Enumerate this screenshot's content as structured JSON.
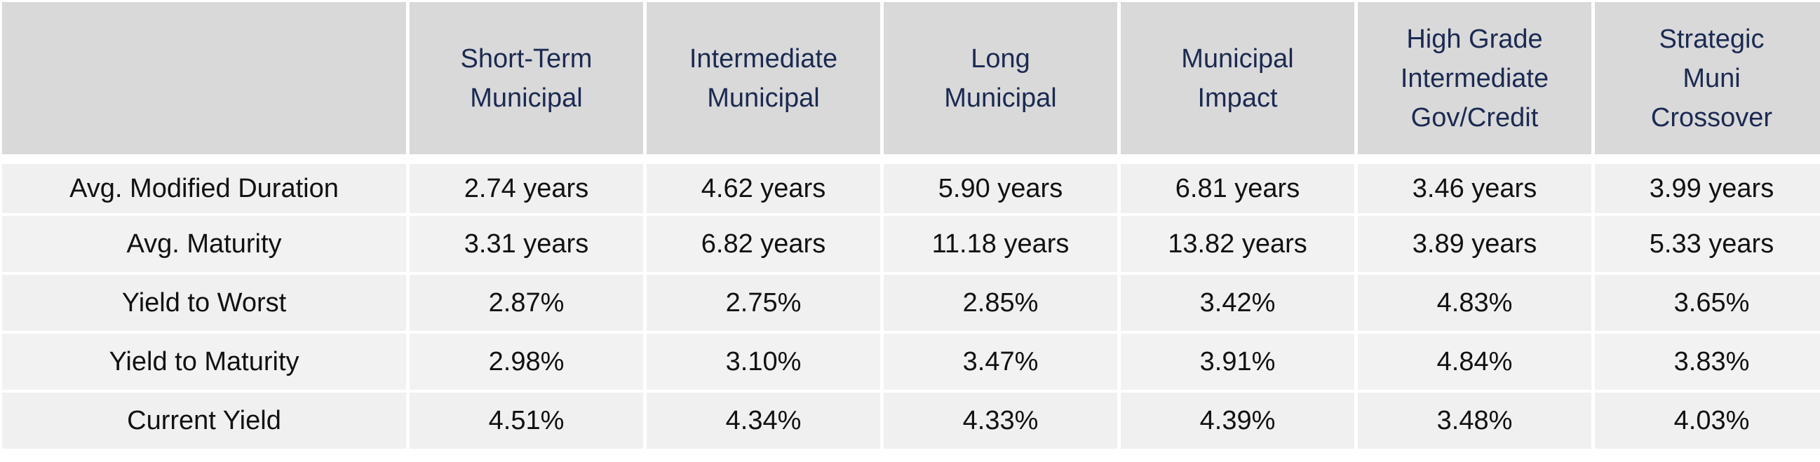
{
  "table": {
    "headers": [
      "",
      "Short-Term\nMunicipal",
      "Intermediate\nMunicipal",
      "Long\nMunicipal",
      "Municipal\nImpact",
      "High Grade\nIntermediate\nGov/Credit",
      "Strategic\nMuni\nCrossover"
    ],
    "rows": [
      {
        "label": "Avg. Modified Duration",
        "values": [
          "2.74 years",
          "4.62 years",
          "5.90 years",
          "6.81 years",
          "3.46 years",
          "3.99 years"
        ]
      },
      {
        "label": "Avg. Maturity",
        "values": [
          "3.31 years",
          "6.82 years",
          "11.18 years",
          "13.82 years",
          "3.89 years",
          "5.33 years"
        ]
      },
      {
        "label": "Yield to Worst",
        "values": [
          "2.87%",
          "2.75%",
          "2.85%",
          "3.42%",
          "4.83%",
          "3.65%"
        ]
      },
      {
        "label": "Yield to Maturity",
        "values": [
          "2.98%",
          "3.10%",
          "3.47%",
          "3.91%",
          "4.84%",
          "3.83%"
        ]
      },
      {
        "label": "Current Yield",
        "values": [
          "4.51%",
          "4.34%",
          "4.33%",
          "4.39%",
          "3.48%",
          "4.03%"
        ]
      }
    ]
  },
  "colors": {
    "header_bg": "#d9d9d9",
    "header_text": "#1b2a52",
    "row_bg": "#f0f0f0",
    "body_text": "#111111"
  }
}
